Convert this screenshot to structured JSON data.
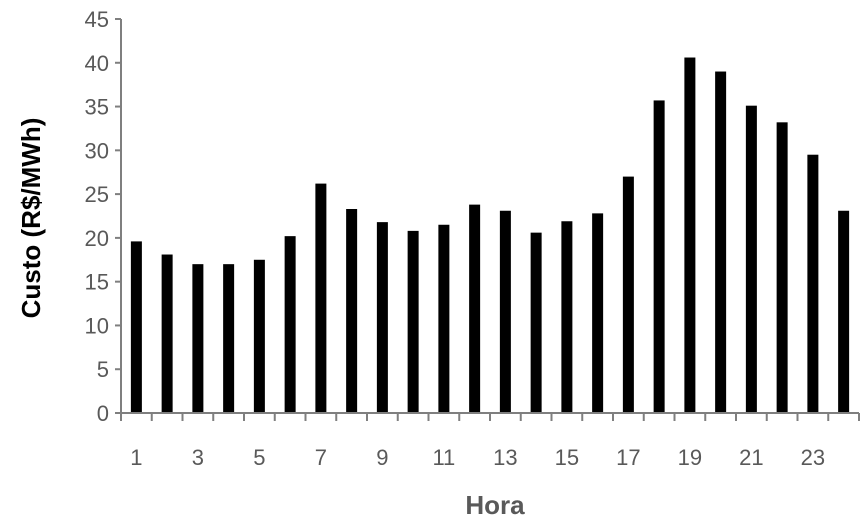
{
  "chart_data": {
    "type": "bar",
    "xlabel": "Hora",
    "ylabel": "Custo (R$/MWh)",
    "ylim": [
      0,
      45
    ],
    "y_ticks": [
      0,
      5,
      10,
      15,
      20,
      25,
      30,
      35,
      40,
      45
    ],
    "categories": [
      "1",
      "2",
      "3",
      "4",
      "5",
      "6",
      "7",
      "8",
      "9",
      "10",
      "11",
      "12",
      "13",
      "14",
      "15",
      "16",
      "17",
      "18",
      "19",
      "20",
      "21",
      "22",
      "23",
      "24"
    ],
    "x_tick_labels": [
      "1",
      "3",
      "5",
      "7",
      "9",
      "11",
      "13",
      "15",
      "17",
      "19",
      "21",
      "23"
    ],
    "values": [
      19.6,
      18.1,
      17.0,
      17.0,
      17.5,
      20.2,
      26.2,
      23.3,
      21.8,
      20.8,
      21.5,
      23.8,
      23.1,
      20.6,
      21.9,
      22.8,
      27.0,
      35.7,
      40.6,
      39.0,
      35.1,
      33.2,
      29.5,
      23.1
    ],
    "grid": false,
    "colors": {
      "bar": "#000000",
      "axis": "#7f7f7f",
      "tick_text": "#595959",
      "title_text": "#595959",
      "ylabel_text": "#000000"
    }
  }
}
